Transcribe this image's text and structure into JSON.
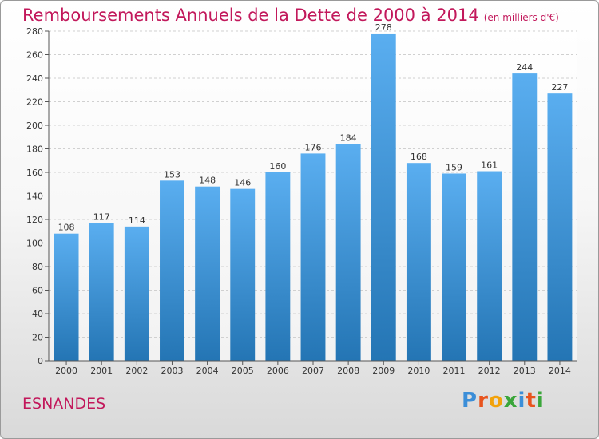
{
  "header": {
    "title": "Remboursements Annuels de la Dette de 2000 à 2014",
    "unit": "(en milliers d'€)"
  },
  "footer": {
    "town": "ESNANDES",
    "logo": "Proxiti"
  },
  "colors": {
    "title": "#c2185b",
    "bar_top": "#5aaef0",
    "bar_bottom": "#2475b4"
  },
  "chart_data": {
    "type": "bar",
    "title": "Remboursements Annuels de la Dette de 2000 à 2014",
    "subtitle": "(en milliers d'€)",
    "xlabel": "",
    "ylabel": "",
    "categories": [
      "2000",
      "2001",
      "2002",
      "2003",
      "2004",
      "2005",
      "2006",
      "2007",
      "2008",
      "2009",
      "2010",
      "2011",
      "2012",
      "2013",
      "2014"
    ],
    "values": [
      108,
      117,
      114,
      153,
      148,
      146,
      160,
      176,
      184,
      278,
      168,
      159,
      161,
      244,
      227
    ],
    "ylim": [
      0,
      280
    ],
    "yticks": [
      0,
      20,
      40,
      60,
      80,
      100,
      120,
      140,
      160,
      180,
      200,
      220,
      240,
      260,
      280
    ],
    "grid": true,
    "legend": "none"
  }
}
